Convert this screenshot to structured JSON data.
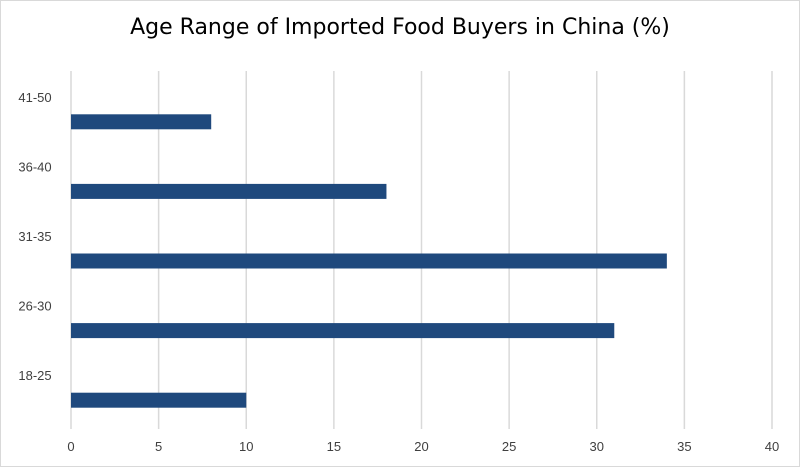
{
  "chart_data": {
    "type": "bar",
    "orientation": "horizontal",
    "title": "Age Range of Imported Food Buyers in China (%)",
    "categories": [
      "18-25",
      "26-30",
      "31-35",
      "36-40",
      "41-50"
    ],
    "values": [
      10,
      31,
      34,
      18,
      8
    ],
    "xlim": [
      0,
      40
    ],
    "xticks": [
      0,
      5,
      10,
      15,
      20,
      25,
      30,
      35,
      40
    ],
    "grid": "vertical",
    "legend": "none",
    "bar_color": "#1f497d",
    "grid_color": "#d9d9d9"
  }
}
